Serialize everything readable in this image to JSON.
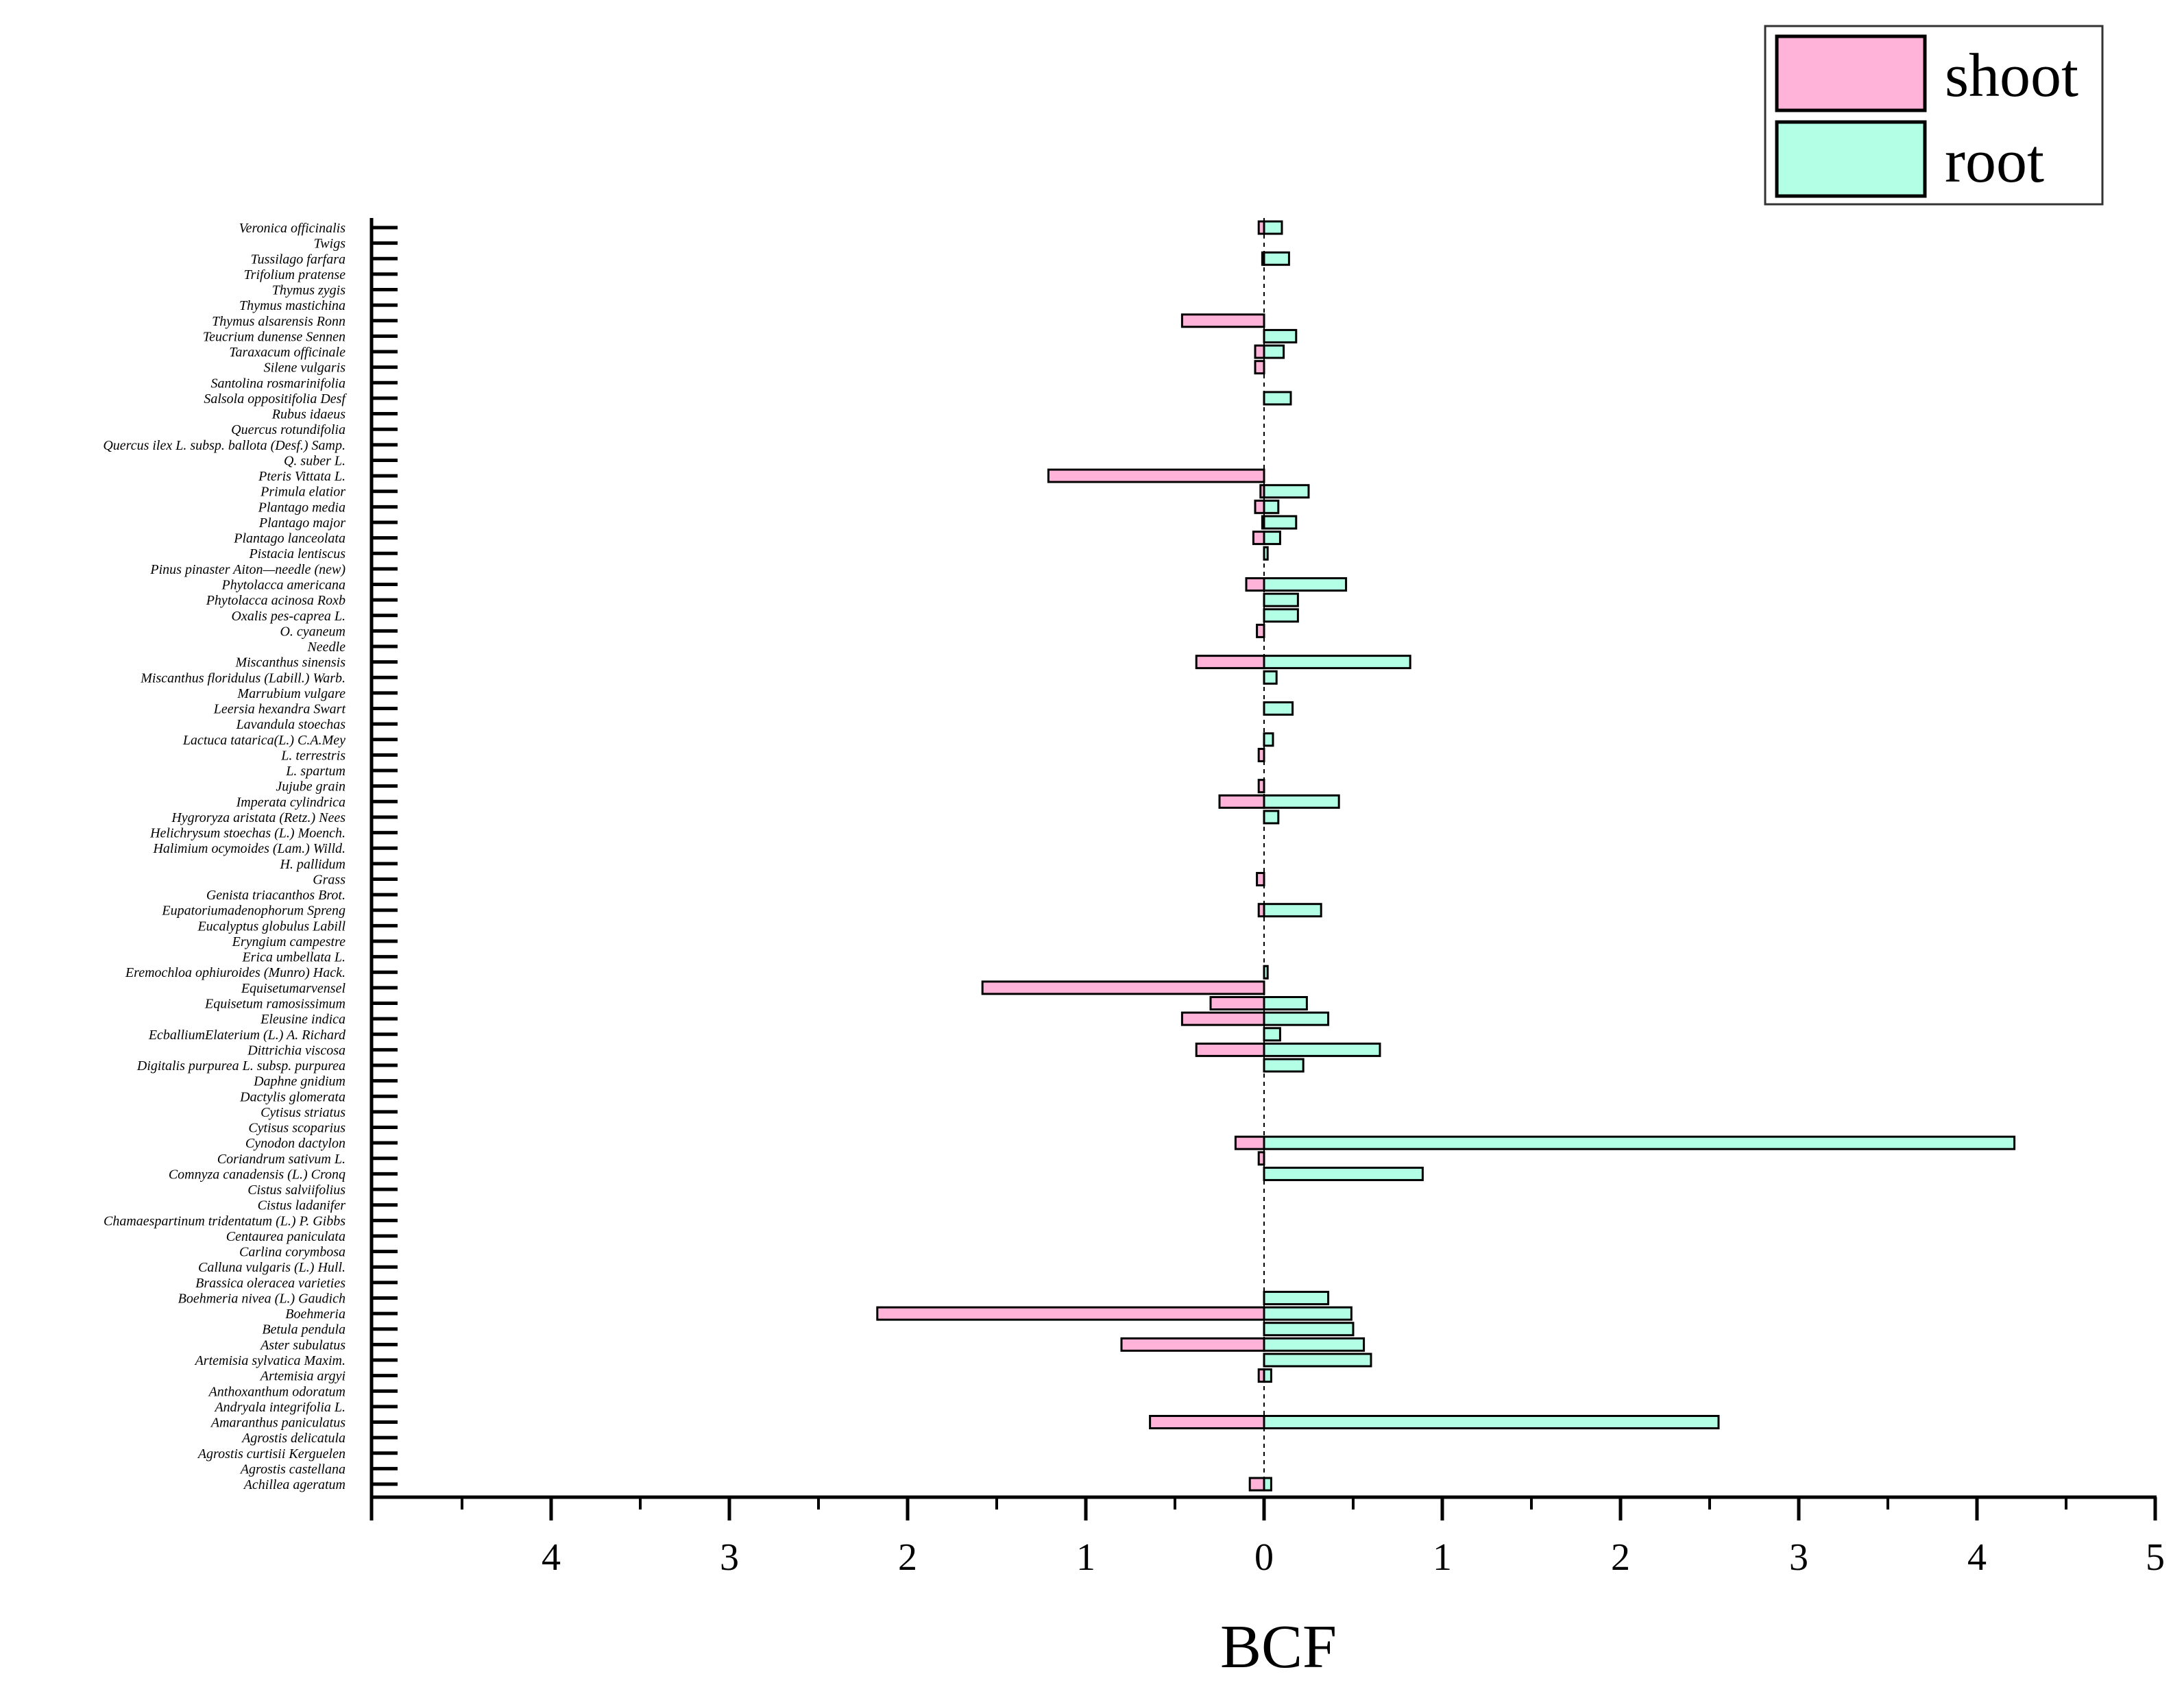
{
  "chart_data": {
    "type": "bar",
    "orientation": "horizontal-diverging",
    "title": "",
    "xlabel": "BCF",
    "ylabel": "",
    "xlim": [
      -5,
      5
    ],
    "x_tick_values": [
      -4,
      -3,
      -2,
      -1,
      0,
      1,
      2,
      3,
      4,
      5
    ],
    "x_tick_labels": [
      "4",
      "3",
      "2",
      "1",
      "0",
      "1",
      "2",
      "3",
      "4",
      "5"
    ],
    "legend": {
      "position": "top-right",
      "entries": [
        "shoot",
        "root"
      ]
    },
    "colors": {
      "shoot": "#ffb3d9",
      "root": "#b3ffe6",
      "outline": "#000000"
    },
    "categories": [
      "Veronica officinalis",
      "Twigs",
      "Tussilago farfara",
      "Trifolium pratense",
      "Thymus zygis",
      "Thymus mastichina",
      "Thymus alsarensis Ronn",
      "Teucrium dunense Sennen",
      "Taraxacum officinale",
      "Silene vulgaris",
      "Santolina rosmarinifolia",
      "Salsola oppositifolia Desf",
      "Rubus idaeus",
      "Quercus rotundifolia",
      "Quercus ilex L. subsp. ballota (Desf.) Samp.",
      "Q. suber L.",
      "Pteris Vittata L.",
      "Primula elatior",
      "Plantago media",
      "Plantago major",
      "Plantago lanceolata",
      "Pistacia lentiscus",
      "Pinus pinaster Aiton—needle (new)",
      "Phytolacca americana",
      "Phytolacca acinosa Roxb",
      "Oxalis pes-caprea L.",
      "O. cyaneum",
      "Needle",
      "Miscanthus sinensis",
      "Miscanthus floridulus (Labill.) Warb.",
      "Marrubium vulgare",
      "Leersia hexandra Swart",
      "Lavandula stoechas",
      "Lactuca tatarica(L.) C.A.Mey",
      "L. terrestris",
      "L. spartum",
      "Jujube grain",
      "Imperata cylindrica",
      "Hygroryza aristata (Retz.) Nees",
      "Helichrysum stoechas (L.) Moench.",
      "Halimium ocymoides (Lam.) Willd.",
      "H. pallidum",
      "Grass",
      "Genista triacanthos Brot.",
      "Eupatoriumadenophorum Spreng",
      "Eucalyptus globulus Labill",
      "Eryngium campestre",
      "Erica umbellata L.",
      "Eremochloa ophiuroides (Munro) Hack.",
      "Equisetumarvensel",
      "Equisetum ramosissimum",
      "Eleusine indica",
      "EcballiumElaterium (L.) A. Richard",
      "Dittrichia viscosa",
      "Digitalis purpurea L. subsp. purpurea",
      "Daphne gnidium",
      "Dactylis glomerata",
      "Cytisus striatus",
      "Cytisus scoparius",
      "Cynodon dactylon",
      "Coriandrum sativum L.",
      "Comnyza canadensis (L.) Cronq",
      "Cistus salviifolius",
      "Cistus ladanifer",
      "Chamaespartinum tridentatum (L.) P. Gibbs",
      "Centaurea paniculata",
      "Carlina corymbosa",
      "Calluna vulgaris (L.) Hull.",
      "Brassica oleracea varieties",
      "Boehmeria nivea (L.) Gaudich",
      "Boehmeria",
      "Betula pendula",
      "Aster subulatus",
      "Artemisia sylvatica Maxim.",
      "Artemisia argyi",
      "Anthoxanthum odoratum",
      "Andryala integrifolia L.",
      "Amaranthus paniculatus",
      "Agrostis delicatula",
      "Agrostis curtisii Kerguelen",
      "Agrostis castellana",
      "Achillea ageratum"
    ],
    "series": [
      {
        "name": "shoot",
        "values": [
          0.03,
          0.0,
          0.01,
          0.0,
          0.0,
          0.0,
          0.46,
          0.0,
          0.05,
          0.05,
          0.0,
          0.0,
          0.0,
          0.0,
          0.0,
          0.0,
          1.21,
          0.02,
          0.05,
          0.01,
          0.06,
          0.0,
          0.0,
          0.1,
          0.0,
          0.0,
          0.04,
          0.0,
          0.38,
          0.0,
          0.0,
          0.0,
          0.0,
          0.0,
          0.03,
          0.0,
          0.03,
          0.25,
          0.0,
          0.0,
          0.0,
          0.0,
          0.04,
          0.0,
          0.03,
          0.0,
          0.0,
          0.0,
          0.0,
          1.58,
          0.3,
          0.46,
          0.0,
          0.38,
          0.0,
          0.0,
          0.0,
          0.0,
          0.0,
          0.16,
          0.03,
          0.0,
          0.0,
          0.0,
          0.0,
          0.0,
          0.0,
          0.0,
          0.0,
          0.0,
          2.17,
          0.0,
          0.8,
          0.0,
          0.03,
          0.0,
          0.0,
          0.64,
          0.0,
          0.0,
          0.0,
          0.08
        ]
      },
      {
        "name": "root",
        "values": [
          0.1,
          0.0,
          0.14,
          0.0,
          0.0,
          0.0,
          0.0,
          0.18,
          0.11,
          0.0,
          0.0,
          0.15,
          0.0,
          0.0,
          0.0,
          0.0,
          0.0,
          0.25,
          0.08,
          0.18,
          0.09,
          0.02,
          0.0,
          0.46,
          0.19,
          0.19,
          0.0,
          0.0,
          0.82,
          0.07,
          0.0,
          0.16,
          0.0,
          0.05,
          0.0,
          0.0,
          0.0,
          0.42,
          0.08,
          0.0,
          0.0,
          0.0,
          0.0,
          0.0,
          0.32,
          0.0,
          0.0,
          0.0,
          0.02,
          0.0,
          0.24,
          0.36,
          0.09,
          0.65,
          0.22,
          0.0,
          0.0,
          0.0,
          0.0,
          4.21,
          0.0,
          0.89,
          0.0,
          0.0,
          0.0,
          0.0,
          0.0,
          0.0,
          0.0,
          0.36,
          0.49,
          0.5,
          0.56,
          0.6,
          0.04,
          0.0,
          0.0,
          2.55,
          0.0,
          0.0,
          0.0,
          0.04
        ]
      }
    ]
  }
}
